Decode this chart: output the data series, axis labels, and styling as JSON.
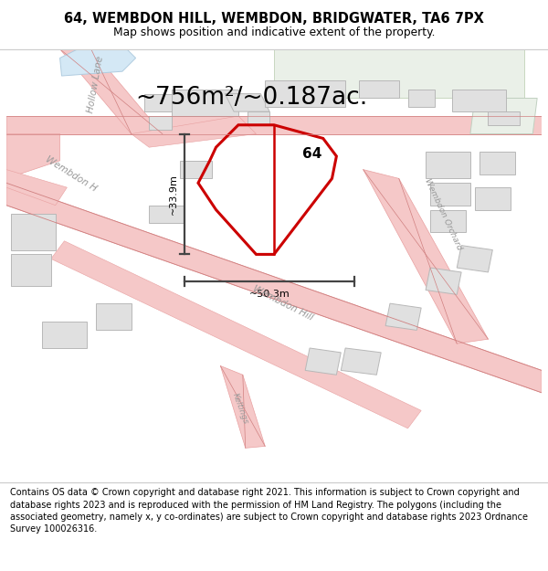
{
  "title": "64, WEMBDON HILL, WEMBDON, BRIDGWATER, TA6 7PX",
  "subtitle": "Map shows position and indicative extent of the property.",
  "footer": "Contains OS data © Crown copyright and database right 2021. This information is subject to Crown copyright and database rights 2023 and is reproduced with the permission of HM Land Registry. The polygons (including the associated geometry, namely x, y co-ordinates) are subject to Crown copyright and database rights 2023 Ordnance Survey 100026316.",
  "map_bg": "#f8f8f8",
  "road_color": "#f5c8c8",
  "road_outline": "#e8a0a0",
  "road_line_color": "#d08080",
  "building_fill": "#e0e0e0",
  "building_edge": "#b8b8b8",
  "plot_edge": "#cc0000",
  "water_fill": "#d4e8f5",
  "water_edge": "#b0cce0",
  "green_fill": "#eaf0e8",
  "green_edge": "#c8d8c0",
  "measurement_color": "#444444",
  "label_color": "#999999",
  "area_text": "~756m²/~0.187ac.",
  "width_text": "~50.3m",
  "height_text": "~33.9m",
  "number_text": "64",
  "title_fontsize": 10.5,
  "subtitle_fontsize": 8.8,
  "footer_fontsize": 7.0,
  "area_fontsize": 19,
  "street_fontsize": 7.5,
  "num_fontsize": 11,
  "meas_fontsize": 8.0
}
